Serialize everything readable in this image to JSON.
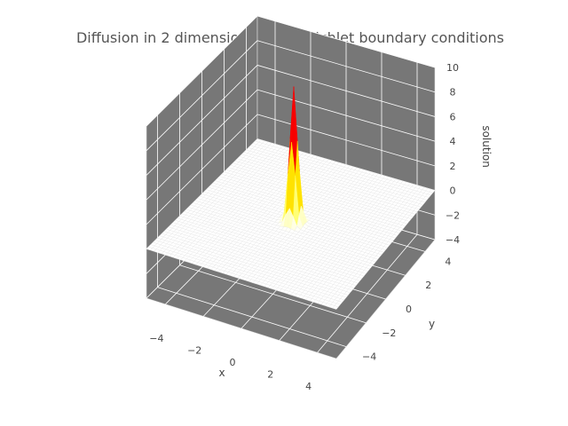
{
  "chart_data": {
    "type": "surface3d",
    "title": "Diffusion in 2 dimensions with Dirichlet boundary conditions",
    "xlabel": "x",
    "ylabel": "y",
    "zlabel": "solution",
    "xlim": [
      -5,
      5
    ],
    "ylim": [
      -5,
      5
    ],
    "zlim": [
      -4,
      10
    ],
    "xticks": [
      -4,
      -2,
      0,
      2,
      4
    ],
    "yticks": [
      -4,
      -2,
      0,
      2,
      4
    ],
    "zticks": [
      -4,
      -2,
      0,
      2,
      4,
      6,
      8,
      10
    ],
    "xtick_labels": [
      "−4",
      "−2",
      "0",
      "2",
      "4"
    ],
    "ytick_labels": [
      "−4",
      "−2",
      "0",
      "2",
      "4"
    ],
    "ztick_labels": [
      "−4",
      "−2",
      "0",
      "2",
      "4",
      "6",
      "8",
      "10"
    ],
    "surface": {
      "function": "peaked gaussian",
      "center": [
        0,
        0
      ],
      "peak": 11,
      "base": 0,
      "colormap": "hot"
    },
    "grid": true,
    "pane_color": "#777777",
    "grid_color": "#ffffff"
  }
}
